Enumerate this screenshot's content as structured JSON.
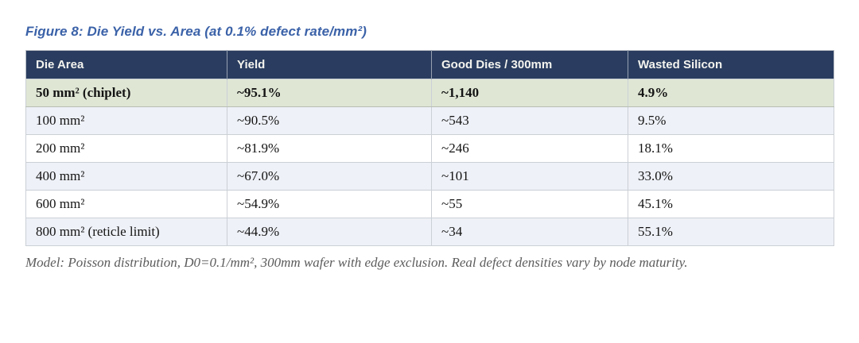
{
  "figure": {
    "title": "Figure 8: Die Yield vs. Area (at 0.1% defect rate/mm²)"
  },
  "table": {
    "columns": [
      "Die Area",
      "Yield",
      "Good Dies / 300mm",
      "Wasted Silicon"
    ],
    "rows": [
      {
        "cells": [
          "50 mm² (chiplet)",
          "~95.1%",
          "~1,140",
          "4.9%"
        ],
        "highlight": true
      },
      {
        "cells": [
          "100 mm²",
          "~90.5%",
          "~543",
          "9.5%"
        ],
        "highlight": false
      },
      {
        "cells": [
          "200 mm²",
          "~81.9%",
          "~246",
          "18.1%"
        ],
        "highlight": false
      },
      {
        "cells": [
          "400 mm²",
          "~67.0%",
          "~101",
          "33.0%"
        ],
        "highlight": false
      },
      {
        "cells": [
          "600 mm²",
          "~54.9%",
          "~55",
          "45.1%"
        ],
        "highlight": false
      },
      {
        "cells": [
          "800 mm² (reticle limit)",
          "~44.9%",
          "~34",
          "55.1%"
        ],
        "highlight": false
      }
    ]
  },
  "footnote": "Model: Poisson distribution, D0=0.1/mm², 300mm wafer with edge exclusion. Real defect densities vary by node maturity.",
  "colors": {
    "title_blue": "#3b62a8",
    "header_navy": "#2a3d60",
    "header_text": "#f4f4ef",
    "highlight_green": "#dfe6d4",
    "alt_row_blue": "#eef1f7",
    "footnote_gray": "#5c5c5c"
  },
  "chart_data": {
    "type": "table",
    "title": "Figure 8: Die Yield vs. Area (at 0.1% defect rate/mm²)",
    "columns": [
      "Die Area",
      "Yield",
      "Good Dies / 300mm",
      "Wasted Silicon"
    ],
    "die_area_mm2": [
      50,
      100,
      200,
      400,
      600,
      800
    ],
    "yield_percent": [
      95.1,
      90.5,
      81.9,
      67.0,
      54.9,
      44.9
    ],
    "good_dies_300mm": [
      1140,
      543,
      246,
      101,
      55,
      34
    ],
    "wasted_silicon_percent": [
      4.9,
      9.5,
      18.1,
      33.0,
      45.1,
      55.1
    ],
    "notes": "Poisson distribution, D0=0.1/mm², 300mm wafer with edge exclusion"
  }
}
